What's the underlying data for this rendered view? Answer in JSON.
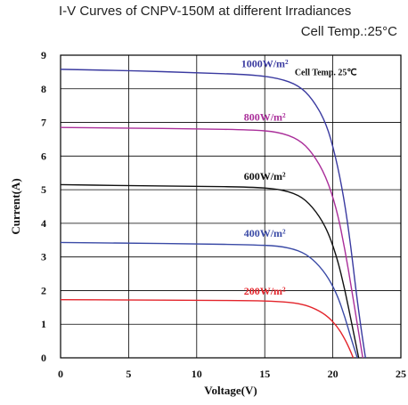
{
  "chart_data": {
    "type": "line",
    "title": "I-V Curves of CNPV-150M  at different Irradiances",
    "subtitle": "Cell Temp.:25°C",
    "xlabel": "Voltage(V)",
    "ylabel": "Current(A)",
    "xlim": [
      0,
      25
    ],
    "ylim": [
      0,
      9
    ],
    "x_ticks": [
      0,
      5,
      10,
      15,
      20,
      25
    ],
    "y_ticks": [
      0,
      1,
      2,
      3,
      4,
      5,
      6,
      7,
      8,
      9
    ],
    "grid": true,
    "annotations": [
      {
        "text": "Cell Temp. 25℃",
        "x": 17.2,
        "y": 8.4
      }
    ],
    "series": [
      {
        "name": "1000W/m²",
        "color": "#3a3aa0",
        "label_pos": [
          15.0,
          8.64
        ],
        "points": [
          [
            0,
            8.58
          ],
          [
            5,
            8.54
          ],
          [
            10,
            8.48
          ],
          [
            14,
            8.42
          ],
          [
            16,
            8.32
          ],
          [
            17.5,
            8.1
          ],
          [
            18.5,
            7.7
          ],
          [
            19.5,
            7.0
          ],
          [
            20.2,
            6.0
          ],
          [
            20.8,
            4.8
          ],
          [
            21.3,
            3.4
          ],
          [
            21.7,
            2.0
          ],
          [
            22.1,
            0.8
          ],
          [
            22.4,
            0.0
          ]
        ]
      },
      {
        "name": "800W/m²",
        "color": "#aa2f9a",
        "label_pos": [
          15.0,
          7.06
        ],
        "points": [
          [
            0,
            6.85
          ],
          [
            5,
            6.83
          ],
          [
            10,
            6.81
          ],
          [
            14,
            6.78
          ],
          [
            16,
            6.72
          ],
          [
            17.5,
            6.5
          ],
          [
            18.5,
            6.1
          ],
          [
            19.5,
            5.4
          ],
          [
            20.3,
            4.4
          ],
          [
            20.9,
            3.2
          ],
          [
            21.4,
            2.0
          ],
          [
            21.8,
            1.0
          ],
          [
            22.2,
            0.0
          ]
        ]
      },
      {
        "name": "600W/m²",
        "color": "#111111",
        "label_pos": [
          15.0,
          5.3
        ],
        "points": [
          [
            0,
            5.15
          ],
          [
            5,
            5.12
          ],
          [
            10,
            5.1
          ],
          [
            14,
            5.08
          ],
          [
            16,
            5.02
          ],
          [
            17.5,
            4.85
          ],
          [
            18.5,
            4.5
          ],
          [
            19.5,
            3.9
          ],
          [
            20.3,
            3.0
          ],
          [
            20.9,
            2.0
          ],
          [
            21.4,
            1.0
          ],
          [
            21.9,
            0.0
          ]
        ]
      },
      {
        "name": "400W/m²",
        "color": "#3a4aa6",
        "label_pos": [
          15.0,
          3.6
        ],
        "points": [
          [
            0,
            3.43
          ],
          [
            5,
            3.41
          ],
          [
            10,
            3.39
          ],
          [
            14,
            3.36
          ],
          [
            16,
            3.33
          ],
          [
            17.5,
            3.2
          ],
          [
            18.5,
            2.95
          ],
          [
            19.5,
            2.5
          ],
          [
            20.3,
            1.9
          ],
          [
            20.9,
            1.2
          ],
          [
            21.4,
            0.5
          ],
          [
            21.8,
            0.0
          ]
        ]
      },
      {
        "name": "200W/m²",
        "color": "#e3242b",
        "label_pos": [
          15.0,
          1.88
        ],
        "points": [
          [
            0,
            1.73
          ],
          [
            5,
            1.72
          ],
          [
            10,
            1.71
          ],
          [
            14,
            1.7
          ],
          [
            16,
            1.68
          ],
          [
            17.5,
            1.62
          ],
          [
            18.5,
            1.5
          ],
          [
            19.5,
            1.28
          ],
          [
            20.3,
            0.95
          ],
          [
            20.9,
            0.55
          ],
          [
            21.3,
            0.2
          ],
          [
            21.5,
            0.0
          ]
        ]
      }
    ]
  }
}
